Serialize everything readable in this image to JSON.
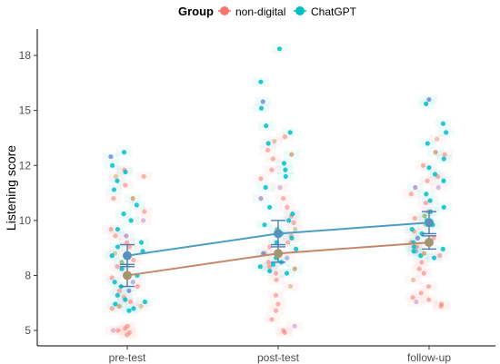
{
  "chart_data": {
    "type": "scatter",
    "ylabel": "Listening score",
    "xlabel": "",
    "categories": [
      "pre-test",
      "post-test",
      "follow-up"
    ],
    "ylim": [
      4.3,
      18.7
    ],
    "yticks": [
      5,
      7.5,
      10,
      12.5,
      15,
      17.5
    ],
    "ytick_labels": [
      "5",
      "8",
      "10",
      "12",
      "15",
      "18"
    ],
    "grid": false,
    "legend": {
      "title": "Group",
      "position": "top",
      "entries": [
        {
          "label": "non-digital",
          "color": "#F8766D"
        },
        {
          "label": "ChatGPT",
          "color": "#00BFC4"
        }
      ]
    },
    "series": [
      {
        "name": "non-digital",
        "color": "#F8766D",
        "line_color": "#C7856A",
        "means": [
          7.5,
          8.5,
          9.0
        ],
        "error_low": [
          7.0,
          8.1,
          8.7
        ],
        "error_high": [
          8.0,
          8.9,
          9.3
        ]
      },
      {
        "name": "ChatGPT",
        "color": "#00BFC4",
        "line_color": "#4A9EC0",
        "means": [
          8.4,
          9.4,
          9.9
        ],
        "error_low": [
          7.9,
          8.8,
          9.4
        ],
        "error_high": [
          8.9,
          10.0,
          10.4
        ]
      }
    ],
    "points": [
      {
        "category": "pre-test",
        "non-digital": [
          4.8,
          4.9,
          5.0,
          5.0,
          5.1,
          5.2,
          6.0,
          6.1,
          6.3,
          6.5,
          6.8,
          7.0,
          7.2,
          7.4,
          7.6,
          7.9,
          8.2,
          8.5,
          8.8,
          9.0,
          9.3,
          9.6,
          10.0,
          10.4,
          11.0,
          11.6,
          12.0,
          12.0,
          12.3
        ],
        "ChatGPT": [
          5.9,
          6.0,
          6.1,
          6.2,
          6.3,
          6.4,
          6.6,
          6.8,
          7.0,
          7.2,
          7.5,
          7.8,
          8.1,
          8.4,
          8.6,
          8.8,
          9.0,
          9.3,
          9.6,
          10.0,
          10.3,
          10.7,
          11.0,
          11.4,
          11.8,
          12.2,
          12.5,
          12.9,
          13.1
        ]
      },
      {
        "category": "post-test",
        "non-digital": [
          4.9,
          5.0,
          5.2,
          5.5,
          5.9,
          6.2,
          6.6,
          7.0,
          7.3,
          7.6,
          7.9,
          8.1,
          8.3,
          8.5,
          8.8,
          9.0,
          9.3,
          9.6,
          9.9,
          10.2,
          10.6,
          11.0,
          11.5,
          11.9,
          12.3,
          12.8,
          13.2,
          13.6,
          13.8
        ],
        "ChatGPT": [
          7.6,
          7.7,
          7.8,
          7.9,
          8.0,
          8.1,
          8.3,
          8.5,
          8.7,
          9.0,
          9.2,
          9.4,
          9.6,
          9.8,
          10.0,
          10.3,
          10.6,
          11.0,
          11.5,
          12.0,
          12.3,
          12.6,
          13.0,
          13.5,
          14.0,
          14.3,
          15.1,
          15.4,
          16.3,
          17.8
        ]
      },
      {
        "category": "follow-up",
        "non-digital": [
          6.1,
          6.2,
          6.3,
          6.4,
          6.5,
          6.7,
          7.0,
          7.3,
          7.6,
          7.8,
          8.1,
          8.4,
          8.6,
          8.8,
          9.0,
          9.2,
          9.5,
          9.8,
          10.1,
          10.4,
          10.8,
          11.2,
          11.5,
          11.8,
          12.0,
          12.5,
          13.0,
          13.7
        ],
        "ChatGPT": [
          8.3,
          8.4,
          8.5,
          8.6,
          8.7,
          8.8,
          9.0,
          9.2,
          9.4,
          9.6,
          9.8,
          10.0,
          10.2,
          10.4,
          10.6,
          10.9,
          11.2,
          11.5,
          11.8,
          12.1,
          12.4,
          12.8,
          13.1,
          13.5,
          14.0,
          14.4,
          15.3,
          15.5
        ]
      }
    ]
  }
}
